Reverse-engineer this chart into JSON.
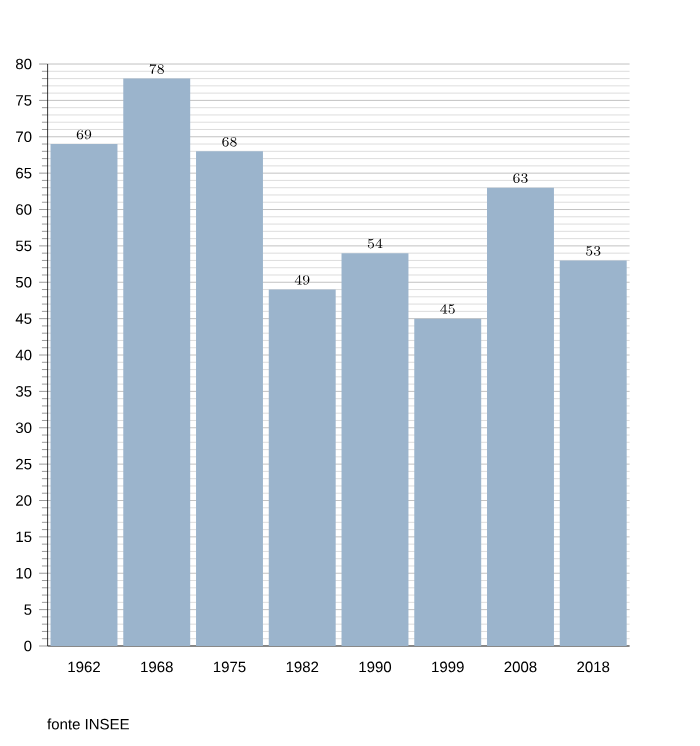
{
  "chart_data": {
    "type": "bar",
    "categories": [
      "1962",
      "1968",
      "1975",
      "1982",
      "1990",
      "1999",
      "2008",
      "2018"
    ],
    "values": [
      69,
      78,
      68,
      49,
      54,
      45,
      63,
      53
    ],
    "color": "#9bb4cc",
    "ylim": [
      0,
      80
    ],
    "yticks": [
      0,
      5,
      10,
      15,
      20,
      25,
      30,
      35,
      40,
      45,
      50,
      55,
      60,
      65,
      70,
      75,
      80
    ],
    "grid": "y",
    "data_labels": true,
    "annotations": [
      "fonte INSEE"
    ]
  }
}
